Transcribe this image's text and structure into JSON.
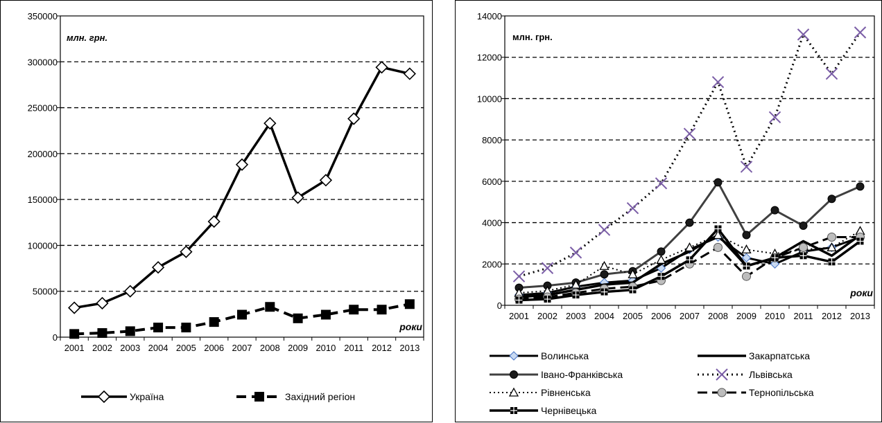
{
  "chart_data": [
    {
      "type": "line",
      "unit_label": "млн. грн.",
      "xlabel": "роки",
      "categories": [
        "2001",
        "2002",
        "2003",
        "2004",
        "2005",
        "2006",
        "2007",
        "2008",
        "2009",
        "2010",
        "2011",
        "2012",
        "2013"
      ],
      "ylim": [
        0,
        350000
      ],
      "yticks": [
        "0",
        "50000",
        "100000",
        "150000",
        "200000",
        "250000",
        "300000",
        "350000"
      ],
      "grid": "horizontal dashed",
      "legend_position": "bottom",
      "series": [
        {
          "name": "Україна",
          "values": [
            32000,
            37000,
            50000,
            76000,
            93000,
            126000,
            188000,
            233000,
            152000,
            171000,
            238000,
            294000,
            287000
          ],
          "marker": "diamond-open",
          "line": "solid"
        },
        {
          "name": "Західний регіон",
          "values": [
            3500,
            4500,
            6500,
            10500,
            10500,
            16500,
            24500,
            33000,
            20500,
            24500,
            30000,
            30000,
            36000
          ],
          "marker": "square-filled",
          "line": "dashed"
        }
      ]
    },
    {
      "type": "line",
      "unit_label": "млн. грн.",
      "xlabel": "роки",
      "categories": [
        "2001",
        "2002",
        "2003",
        "2004",
        "2005",
        "2006",
        "2007",
        "2008",
        "2009",
        "2010",
        "2011",
        "2012",
        "2013"
      ],
      "ylim": [
        0,
        14000
      ],
      "yticks": [
        "0",
        "2000",
        "4000",
        "6000",
        "8000",
        "10000",
        "12000",
        "14000"
      ],
      "grid": "horizontal dashed",
      "legend_position": "bottom",
      "series": [
        {
          "name": "Волинська",
          "values": [
            500,
            600,
            900,
            1100,
            1200,
            1800,
            2700,
            3300,
            2300,
            2000,
            2600,
            2800,
            3300
          ],
          "marker": "diamond",
          "line": "solid"
        },
        {
          "name": "Закарпатська",
          "values": [
            400,
            500,
            750,
            1000,
            1100,
            2000,
            2600,
            3400,
            1900,
            2300,
            3100,
            2400,
            3400
          ],
          "marker": "none",
          "line": "solid"
        },
        {
          "name": "Івано-Франківська",
          "values": [
            850,
            950,
            1100,
            1500,
            1650,
            2600,
            4000,
            5950,
            3400,
            4600,
            3850,
            5150,
            5750
          ],
          "marker": "circle",
          "line": "solid"
        },
        {
          "name": "Львівська",
          "values": [
            1400,
            1800,
            2550,
            3650,
            4700,
            5900,
            8300,
            10800,
            6700,
            9100,
            13100,
            11200,
            13200
          ],
          "marker": "x",
          "line": "dotted"
        },
        {
          "name": "Рівненська",
          "values": [
            600,
            700,
            1000,
            1900,
            1500,
            2200,
            2800,
            3400,
            2700,
            2500,
            2700,
            2800,
            3600
          ],
          "marker": "triangle-open",
          "line": "dotted"
        },
        {
          "name": "Тернопільська",
          "values": [
            300,
            400,
            600,
            800,
            900,
            1200,
            2000,
            2800,
            1400,
            2300,
            2800,
            3300,
            3300
          ],
          "marker": "circle-grey",
          "line": "dashed"
        },
        {
          "name": "Чернівецька",
          "values": [
            250,
            300,
            500,
            650,
            750,
            1400,
            2200,
            3700,
            1900,
            2300,
            2400,
            2100,
            3100
          ],
          "marker": "square-cross",
          "line": "solid"
        }
      ]
    }
  ]
}
